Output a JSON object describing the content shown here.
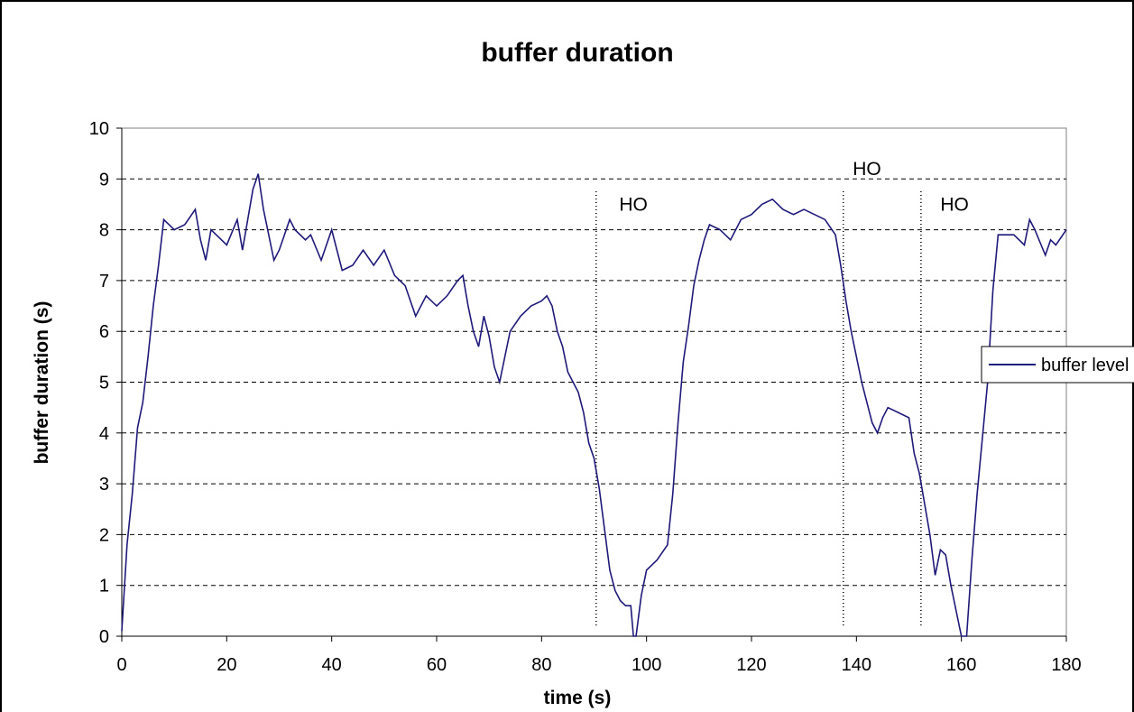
{
  "chart_data": {
    "type": "line",
    "title": "buffer duration",
    "xlabel": "time (s)",
    "ylabel": "buffer duration (s)",
    "x": [
      0,
      1,
      2,
      3,
      4,
      5,
      6,
      7,
      8,
      9,
      10,
      12,
      14,
      15,
      16,
      17,
      18,
      20,
      22,
      23,
      24,
      25,
      26,
      27,
      28,
      29,
      30,
      32,
      33,
      35,
      36,
      38,
      40,
      41,
      42,
      44,
      46,
      48,
      50,
      52,
      54,
      56,
      58,
      60,
      62,
      64,
      65,
      66,
      67,
      68,
      69,
      70,
      71,
      72,
      73,
      74,
      76,
      78,
      80,
      81,
      82,
      83,
      84,
      85,
      86,
      87,
      88,
      89,
      90,
      91,
      92,
      93,
      94,
      95,
      96,
      97,
      97.5,
      98,
      99,
      100,
      102,
      104,
      105,
      106,
      107,
      108,
      109,
      110,
      111,
      112,
      114,
      116,
      118,
      120,
      122,
      124,
      126,
      128,
      130,
      132,
      134,
      136,
      137,
      138,
      139,
      140,
      141,
      142,
      143,
      144,
      145,
      146,
      148,
      150,
      151,
      152,
      153,
      154,
      155,
      156,
      157,
      158,
      159,
      160,
      161,
      162,
      163,
      164,
      165,
      166,
      167,
      168,
      170,
      172,
      173,
      174,
      176,
      177,
      178,
      180
    ],
    "series": [
      {
        "name": "buffer level",
        "color": "#1f1a7a",
        "values": [
          0.1,
          1.8,
          2.8,
          4.1,
          4.6,
          5.5,
          6.5,
          7.3,
          8.2,
          8.1,
          8.0,
          8.1,
          8.4,
          7.8,
          7.4,
          8.0,
          7.9,
          7.7,
          8.2,
          7.6,
          8.2,
          8.8,
          9.1,
          8.4,
          7.9,
          7.4,
          7.6,
          8.2,
          8.0,
          7.8,
          7.9,
          7.4,
          8.0,
          7.6,
          7.2,
          7.3,
          7.6,
          7.3,
          7.6,
          7.1,
          6.9,
          6.3,
          6.7,
          6.5,
          6.7,
          7.0,
          7.1,
          6.5,
          6.0,
          5.7,
          6.3,
          5.9,
          5.3,
          5.0,
          5.5,
          6.0,
          6.3,
          6.5,
          6.6,
          6.7,
          6.5,
          6.0,
          5.7,
          5.2,
          5.0,
          4.8,
          4.4,
          3.8,
          3.5,
          2.9,
          2.1,
          1.3,
          0.9,
          0.7,
          0.6,
          0.6,
          0,
          0,
          0.8,
          1.3,
          1.5,
          1.8,
          2.8,
          4.2,
          5.4,
          6.1,
          6.9,
          7.4,
          7.8,
          8.1,
          8.0,
          7.8,
          8.2,
          8.3,
          8.5,
          8.6,
          8.4,
          8.3,
          8.4,
          8.3,
          8.2,
          7.9,
          7.3,
          6.6,
          6.0,
          5.5,
          5.0,
          4.6,
          4.2,
          4.0,
          4.3,
          4.5,
          4.4,
          4.3,
          3.6,
          3.2,
          2.6,
          2.0,
          1.2,
          1.7,
          1.6,
          1.0,
          0.5,
          0,
          0,
          1.5,
          2.8,
          3.9,
          5.0,
          6.8,
          7.9,
          7.9,
          7.9,
          7.7,
          8.2,
          8.0,
          7.5,
          7.8,
          7.7,
          8.0
        ]
      }
    ],
    "xlim": [
      0,
      180
    ],
    "xticks": [
      0,
      20,
      40,
      60,
      80,
      100,
      120,
      140,
      160,
      180
    ],
    "ylim": [
      0,
      10
    ],
    "yticks": [
      0,
      1,
      2,
      3,
      4,
      5,
      6,
      7,
      8,
      9,
      10
    ],
    "grid": true,
    "legend": "right",
    "vlines": [
      90.4,
      137.5,
      152.3
    ],
    "annotations": [
      {
        "text": "HO",
        "x": 97.5,
        "y": 8.5
      },
      {
        "text": "HO",
        "x": 142,
        "y": 9.2
      },
      {
        "text": "HO",
        "x": 158.7,
        "y": 8.5
      }
    ]
  }
}
